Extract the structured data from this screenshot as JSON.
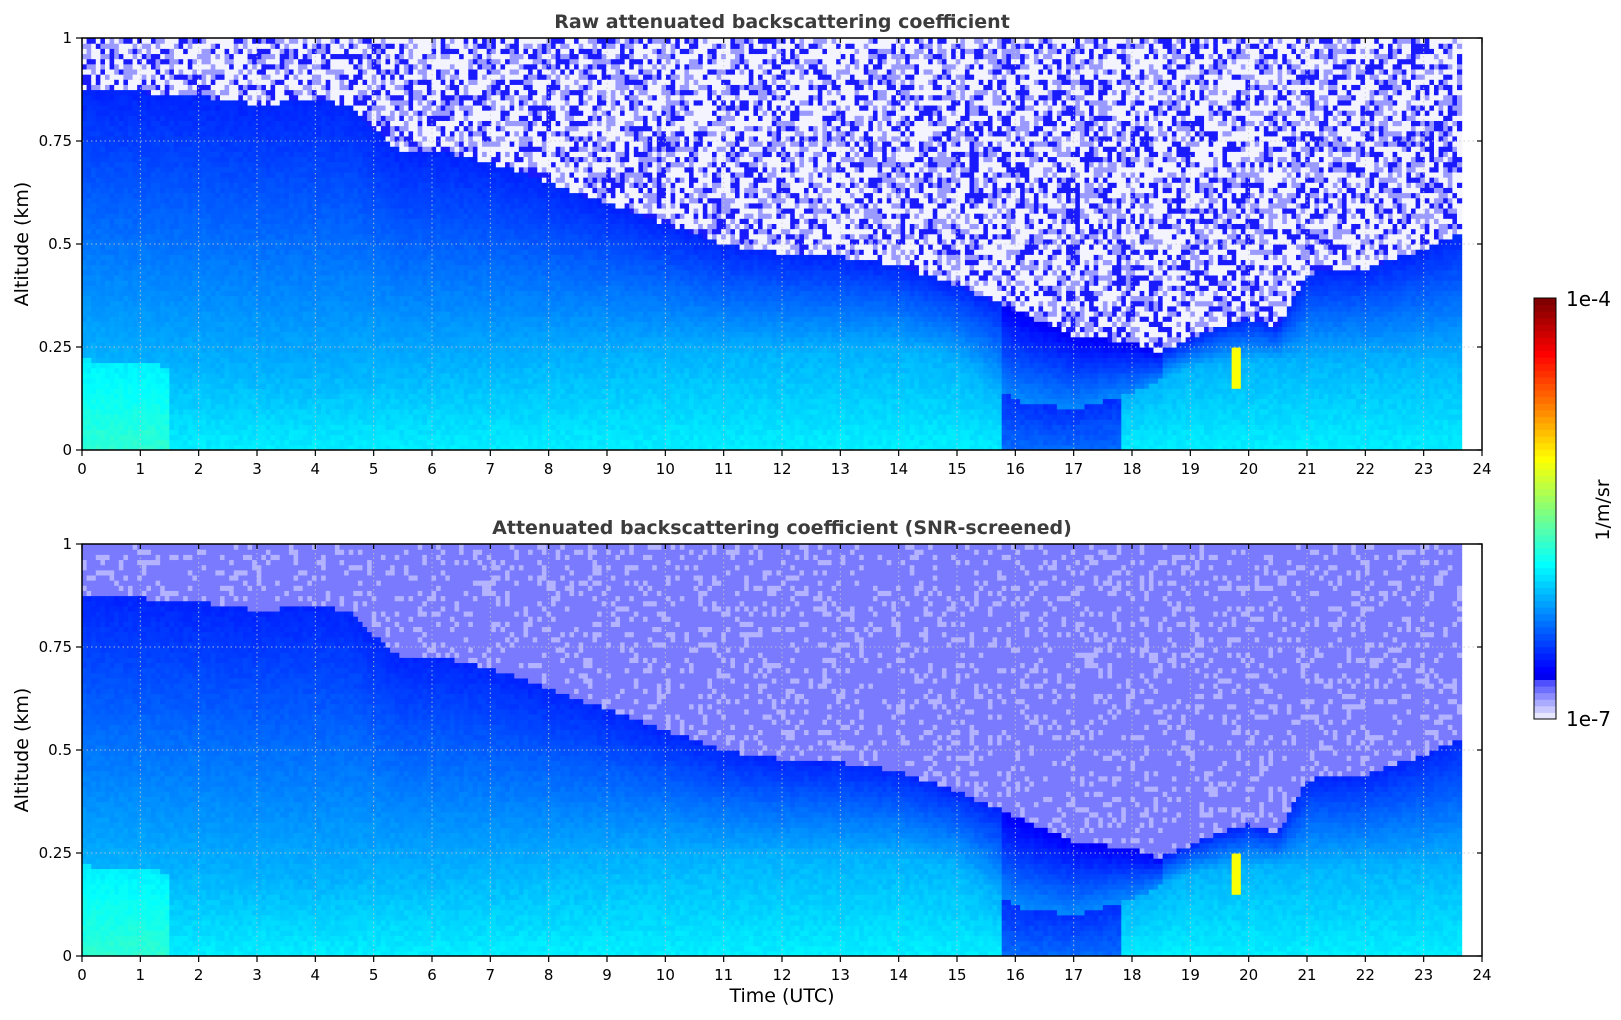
{
  "chart_data": [
    {
      "type": "heatmap",
      "title": "Raw attenuated backscattering coefficient",
      "xlabel": "",
      "ylabel": "Altitude (km)",
      "xlim": [
        0,
        24
      ],
      "ylim": [
        0,
        1
      ],
      "x_ticks": [
        "0",
        "1",
        "2",
        "3",
        "4",
        "5",
        "6",
        "7",
        "8",
        "9",
        "10",
        "11",
        "12",
        "13",
        "14",
        "15",
        "16",
        "17",
        "18",
        "19",
        "20",
        "21",
        "22",
        "23",
        "24"
      ],
      "y_ticks": [
        "0",
        "0.25",
        "0.5",
        "0.75",
        "1"
      ],
      "data_end_time": 23.65,
      "grid": true,
      "boundary_layer_top_km": {
        "time": [
          0,
          1,
          2,
          3,
          4,
          4.6,
          5,
          5.5,
          6,
          7,
          8,
          9,
          10,
          11,
          12,
          13,
          14,
          15,
          16,
          17,
          18,
          18.5,
          19,
          19.5,
          20,
          20.5,
          21,
          22,
          23,
          23.65
        ],
        "altitude": [
          0.88,
          0.87,
          0.86,
          0.84,
          0.85,
          0.84,
          0.78,
          0.72,
          0.73,
          0.7,
          0.65,
          0.6,
          0.55,
          0.5,
          0.48,
          0.47,
          0.45,
          0.4,
          0.34,
          0.28,
          0.26,
          0.24,
          0.27,
          0.3,
          0.32,
          0.3,
          0.43,
          0.44,
          0.49,
          0.53
        ]
      },
      "aerosol_layer_top_km": {
        "time": [
          0,
          2,
          4,
          5,
          6,
          8,
          10,
          12,
          14,
          15,
          16,
          17,
          18,
          19,
          20,
          21,
          22,
          23,
          23.65
        ],
        "altitude": [
          0.22,
          0.2,
          0.18,
          0.2,
          0.2,
          0.22,
          0.24,
          0.24,
          0.24,
          0.22,
          0.12,
          0.1,
          0.14,
          0.2,
          0.22,
          0.22,
          0.22,
          0.22,
          0.22
        ]
      },
      "noise_region": "above boundary layer top",
      "feature": {
        "time": 19.8,
        "altitude_range_km": [
          0.15,
          0.25
        ],
        "description_color": "orange-yellow"
      }
    },
    {
      "type": "heatmap",
      "title": "Attenuated backscattering coefficient (SNR-screened)",
      "xlabel": "Time (UTC)",
      "ylabel": "Altitude (km)",
      "xlim": [
        0,
        24
      ],
      "ylim": [
        0,
        1
      ],
      "x_ticks": [
        "0",
        "1",
        "2",
        "3",
        "4",
        "5",
        "6",
        "7",
        "8",
        "9",
        "10",
        "11",
        "12",
        "13",
        "14",
        "15",
        "16",
        "17",
        "18",
        "19",
        "20",
        "21",
        "22",
        "23",
        "24"
      ],
      "y_ticks": [
        "0",
        "0.25",
        "0.5",
        "0.75",
        "1"
      ],
      "data_end_time": 23.65,
      "grid": true,
      "noise_region": "screened above boundary layer top"
    }
  ],
  "colorbar": {
    "label": "1/m/sr",
    "min_label": "1e-7",
    "max_label": "1e-4",
    "scale": "log",
    "colormap": "jet",
    "low_color": "#e6e6ff",
    "high_color": "#800000"
  }
}
